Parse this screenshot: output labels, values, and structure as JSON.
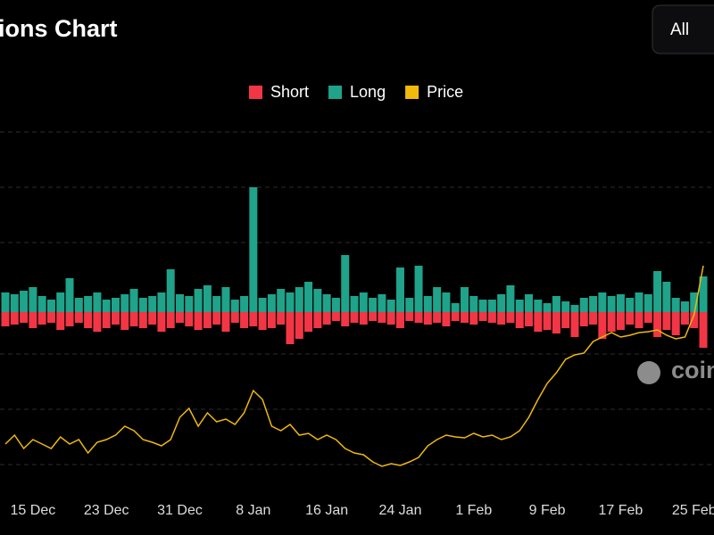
{
  "header": {
    "title": "ions Chart",
    "button": "All"
  },
  "watermark": "coin",
  "chart_data": {
    "type": "bar-line",
    "categories": [
      null,
      null,
      null,
      "15 Dec",
      null,
      null,
      null,
      null,
      null,
      null,
      null,
      "23 Dec",
      null,
      null,
      null,
      null,
      null,
      null,
      null,
      "31 Dec",
      null,
      null,
      null,
      null,
      null,
      null,
      null,
      "8 Jan",
      null,
      null,
      null,
      null,
      null,
      null,
      null,
      "16 Jan",
      null,
      null,
      null,
      null,
      null,
      null,
      null,
      "24 Jan",
      null,
      null,
      null,
      null,
      null,
      null,
      null,
      "1 Feb",
      null,
      null,
      null,
      null,
      null,
      null,
      null,
      "9 Feb",
      null,
      null,
      null,
      null,
      null,
      null,
      null,
      "17 Feb",
      null,
      null,
      null,
      null,
      null,
      null,
      null,
      "25 Feb",
      null
    ],
    "ylim": [
      -198,
      202
    ],
    "y2lim": [
      0,
      400
    ],
    "series": [
      {
        "name": "Short",
        "color": "#f23645",
        "values": [
          -16,
          -14,
          -12,
          -18,
          -14,
          -12,
          -20,
          -16,
          -12,
          -18,
          -22,
          -18,
          -14,
          -20,
          -16,
          -18,
          -14,
          -22,
          -18,
          -12,
          -16,
          -20,
          -18,
          -14,
          -22,
          -12,
          -18,
          -16,
          -20,
          -18,
          -14,
          -36,
          -30,
          -22,
          -18,
          -14,
          -10,
          -16,
          -12,
          -14,
          -10,
          -12,
          -14,
          -18,
          -10,
          -12,
          -14,
          -12,
          -16,
          -10,
          -12,
          -14,
          -10,
          -12,
          -14,
          -12,
          -18,
          -16,
          -22,
          -20,
          -24,
          -18,
          -28,
          -16,
          -14,
          -30,
          -22,
          -20,
          -14,
          -18,
          -12,
          -28,
          -20,
          -26,
          -14,
          -18,
          -40
        ]
      },
      {
        "name": "Long",
        "color": "#1fa38a",
        "values": [
          22,
          20,
          24,
          28,
          18,
          14,
          22,
          38,
          16,
          18,
          22,
          14,
          16,
          20,
          26,
          16,
          18,
          22,
          48,
          20,
          18,
          26,
          30,
          18,
          28,
          14,
          18,
          140,
          16,
          20,
          26,
          22,
          28,
          34,
          26,
          20,
          16,
          64,
          18,
          22,
          16,
          20,
          14,
          50,
          16,
          52,
          18,
          28,
          22,
          10,
          28,
          18,
          14,
          14,
          20,
          30,
          14,
          20,
          14,
          10,
          18,
          12,
          8,
          16,
          18,
          22,
          18,
          20,
          16,
          22,
          20,
          46,
          34,
          16,
          12,
          22,
          40
        ]
      },
      {
        "name": "Price",
        "color": "#f0b90b",
        "axis": "y2",
        "values": [
          50,
          60,
          45,
          55,
          50,
          45,
          58,
          50,
          55,
          40,
          52,
          55,
          60,
          70,
          65,
          55,
          52,
          48,
          55,
          80,
          90,
          70,
          85,
          75,
          78,
          72,
          85,
          110,
          100,
          70,
          65,
          72,
          60,
          62,
          55,
          60,
          55,
          45,
          40,
          38,
          30,
          25,
          28,
          26,
          30,
          35,
          48,
          55,
          60,
          58,
          57,
          62,
          58,
          60,
          55,
          58,
          65,
          80,
          100,
          118,
          130,
          145,
          150,
          152,
          165,
          170,
          175,
          170,
          172,
          175,
          176,
          178,
          172,
          168,
          170,
          195,
          250
        ]
      }
    ]
  }
}
